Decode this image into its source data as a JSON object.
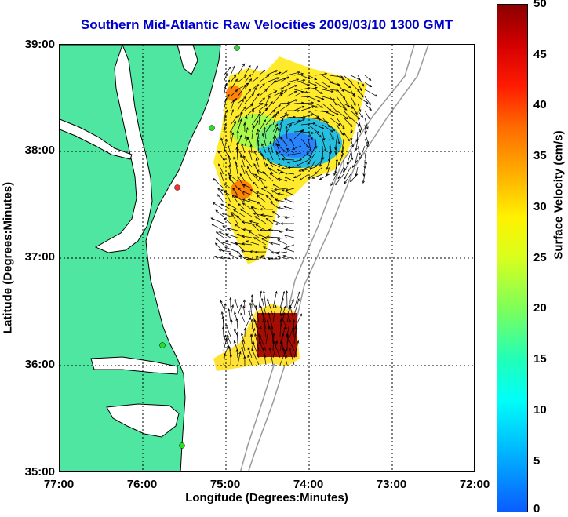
{
  "title": "Southern Mid-Atlantic Raw Velocities 2009/03/10 1300 GMT",
  "xlabel": "Longitude (Degrees:Minutes)",
  "ylabel": "Latitude (Degrees:Minutes)",
  "colorbar": {
    "label": "Surface Velocity (cm/s)",
    "ticks": [
      "50",
      "45",
      "40",
      "35",
      "30",
      "25",
      "20",
      "15",
      "10",
      "5",
      "0"
    ],
    "min": 0,
    "max": 50
  },
  "chart_data": {
    "type": "heatmap",
    "xlim": [
      -77,
      -72
    ],
    "ylim": [
      35,
      39
    ],
    "x_ticks": [
      "77:00",
      "76:00",
      "75:00",
      "74:00",
      "73:00",
      "72:00"
    ],
    "y_ticks": [
      "39:00",
      "38:00",
      "37:00",
      "36:00",
      "35:00"
    ],
    "grid": true,
    "colors": {
      "land": "#4ee6a0",
      "coastline": "#000000",
      "bathymetry": "#9a9a9a",
      "grid": "#000000"
    }
  }
}
